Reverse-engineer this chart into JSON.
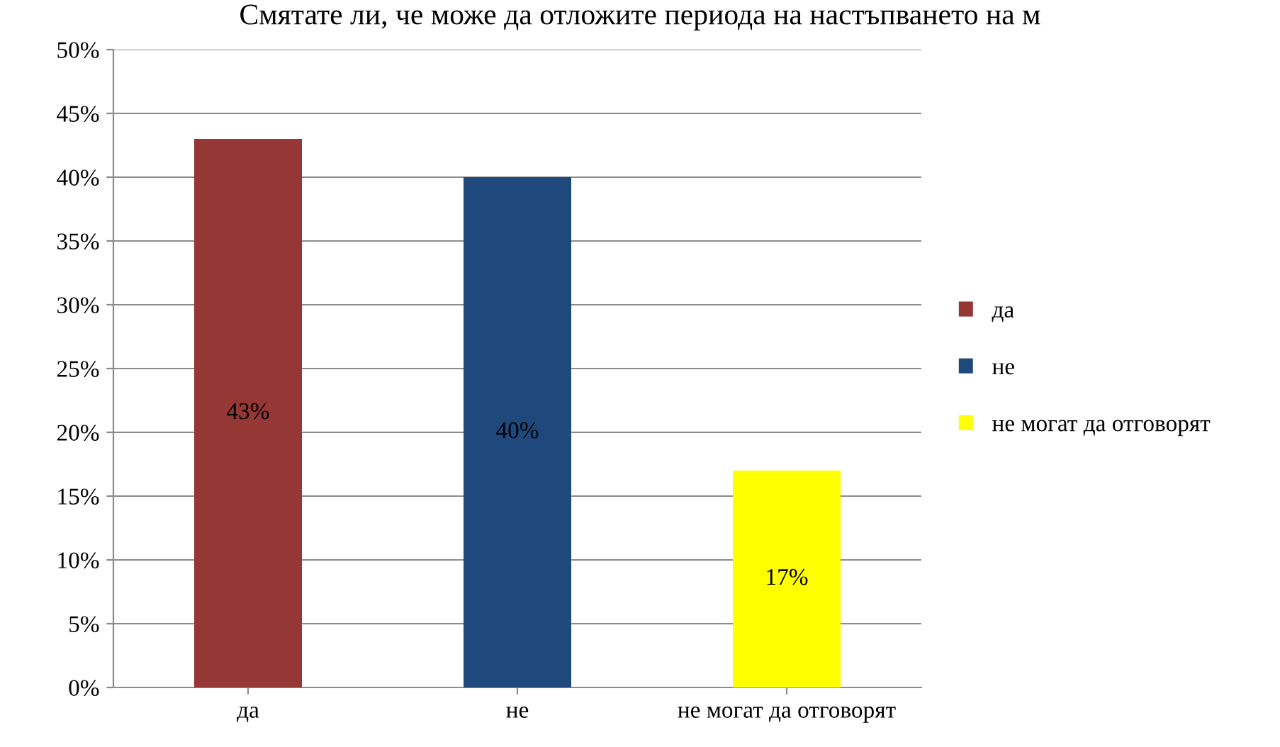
{
  "chart_data": {
    "type": "bar",
    "title": "Смятате ли, че може да отложите периода на настъпването на м",
    "categories": [
      "да",
      "не",
      "не могат да отговорят"
    ],
    "series": [
      {
        "name": "да",
        "color": "#953735",
        "values": [
          43,
          null,
          null
        ],
        "value_labels": [
          "43%",
          null,
          null
        ]
      },
      {
        "name": "не",
        "color": "#1f497d",
        "values": [
          null,
          40,
          null
        ],
        "value_labels": [
          null,
          "40%",
          null
        ]
      },
      {
        "name": "не могат да отговорят",
        "color": "#ffff00",
        "values": [
          null,
          null,
          17
        ],
        "value_labels": [
          null,
          null,
          "17%"
        ]
      }
    ],
    "ylim": [
      0,
      50
    ],
    "yticks": [
      {
        "value": 0,
        "label": "0%"
      },
      {
        "value": 5,
        "label": "5%"
      },
      {
        "value": 10,
        "label": "10%"
      },
      {
        "value": 15,
        "label": "15%"
      },
      {
        "value": 20,
        "label": "20%"
      },
      {
        "value": 25,
        "label": "25%"
      },
      {
        "value": 30,
        "label": "30%"
      },
      {
        "value": 35,
        "label": "35%"
      },
      {
        "value": 40,
        "label": "40%"
      },
      {
        "value": 45,
        "label": "45%"
      },
      {
        "value": 50,
        "label": "50%"
      }
    ],
    "grid": "y",
    "legend": "right"
  }
}
